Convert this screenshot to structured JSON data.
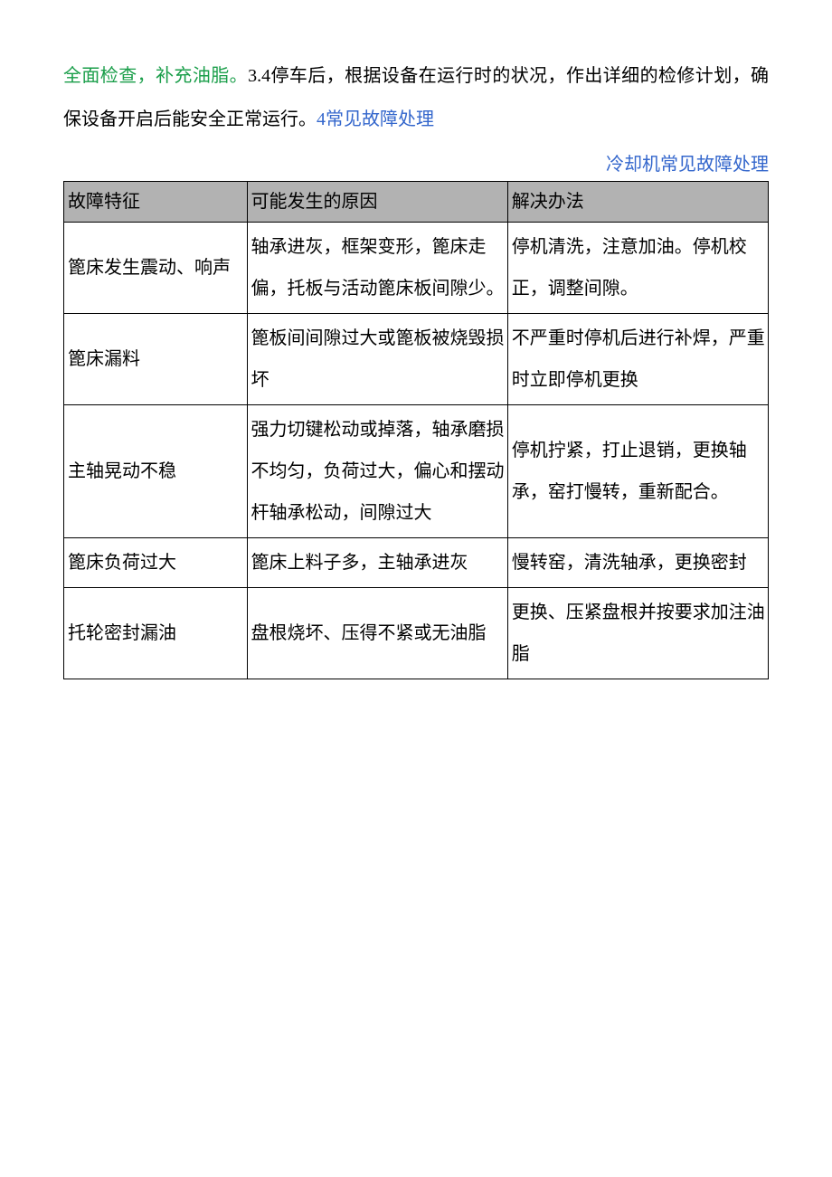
{
  "paragraph": {
    "seg1": "全面检查，补充油脂。",
    "seg2": "3.4停车后，根据设备在运行时的状况，作出详细的检修计划，确保设备开启后能安全正常运行。",
    "seg3": "4常见故障处理"
  },
  "table": {
    "caption": "冷却机常见故障处理",
    "headers": {
      "c1": "故障特征",
      "c2": "可能发生的原因",
      "c3": "解决办法"
    },
    "rows": [
      {
        "c1": "篦床发生震动、响声",
        "c2": "轴承进灰，框架变形，篦床走偏，托板与活动篦床板间隙少。",
        "c3": "停机清洗，注意加油。停机校正，调整间隙。"
      },
      {
        "c1": "篦床漏料",
        "c2": "篦板间间隙过大或篦板被烧毁损坏",
        "c3": "不严重时停机后进行补焊，严重时立即停机更换"
      },
      {
        "c1": "主轴晃动不稳",
        "c2": "强力切键松动或掉落，轴承磨损不均匀，负荷过大，偏心和摆动杆轴承松动，间隙过大",
        "c3": "停机拧紧，打止退销，更换轴承，窑打慢转，重新配合。"
      },
      {
        "c1": "篦床负荷过大",
        "c2": "篦床上料子多，主轴承进灰",
        "c3": "慢转窑，清洗轴承，更换密封"
      },
      {
        "c1": "托轮密封漏油",
        "c2": "盘根烧坏、压得不紧或无油脂",
        "c3": "更换、压紧盘根并按要求加注油脂"
      }
    ]
  },
  "colors": {
    "green": "#1a9e4a",
    "blue": "#3366cc",
    "header_bg": "#b2b2b2",
    "border": "#000000",
    "text": "#000000",
    "background": "#ffffff"
  }
}
